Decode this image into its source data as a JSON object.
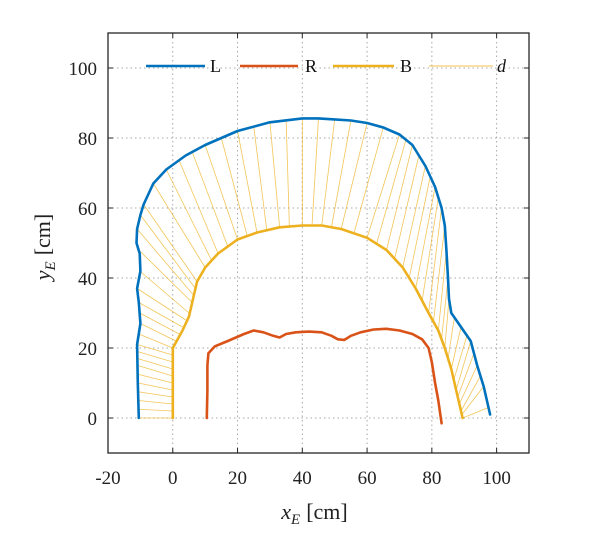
{
  "chart_data": {
    "type": "line",
    "xlabel": {
      "main": "x",
      "sub": "E",
      "unit": "[cm]"
    },
    "ylabel": {
      "main": "y",
      "sub": "E",
      "unit": "[cm]"
    },
    "xlim": [
      -20,
      110
    ],
    "ylim": [
      -10,
      110
    ],
    "xticks": [
      -20,
      0,
      20,
      40,
      60,
      80,
      100
    ],
    "yticks": [
      0,
      20,
      40,
      60,
      80,
      100
    ],
    "grid": true,
    "legend_position": "top",
    "colors": {
      "L": "#0072bd",
      "R": "#d95319",
      "B": "#edb120",
      "d": "#edb120"
    },
    "series": [
      {
        "name": "L",
        "points": [
          [
            -10.5,
            0
          ],
          [
            -10.8,
            10
          ],
          [
            -11,
            21
          ],
          [
            -10,
            27
          ],
          [
            -10.5,
            33
          ],
          [
            -11,
            37
          ],
          [
            -10,
            42
          ],
          [
            -10.2,
            47
          ],
          [
            -11.2,
            50
          ],
          [
            -11,
            54
          ],
          [
            -10,
            58
          ],
          [
            -9,
            61
          ],
          [
            -6,
            67
          ],
          [
            -2,
            71
          ],
          [
            4,
            75
          ],
          [
            10,
            78
          ],
          [
            20,
            82
          ],
          [
            30,
            84.5
          ],
          [
            40,
            85.6
          ],
          [
            45,
            85.6
          ],
          [
            50,
            85.3
          ],
          [
            55,
            85
          ],
          [
            60,
            84.3
          ],
          [
            65,
            83
          ],
          [
            70,
            81
          ],
          [
            74,
            78
          ],
          [
            78,
            72
          ],
          [
            81,
            66
          ],
          [
            83,
            60
          ],
          [
            84,
            55
          ],
          [
            84.5,
            48
          ],
          [
            85,
            40
          ],
          [
            85.3,
            34
          ],
          [
            86,
            30
          ],
          [
            89,
            26
          ],
          [
            92,
            22
          ],
          [
            94,
            15
          ],
          [
            96,
            9
          ],
          [
            97.5,
            3
          ],
          [
            98,
            1
          ]
        ]
      },
      {
        "name": "R",
        "points": [
          [
            10.5,
            0
          ],
          [
            10.7,
            8
          ],
          [
            10.7,
            15
          ],
          [
            11,
            18.5
          ],
          [
            13,
            20.5
          ],
          [
            17,
            22
          ],
          [
            22,
            24
          ],
          [
            25,
            25
          ],
          [
            28,
            24.5
          ],
          [
            31,
            23.5
          ],
          [
            33,
            23
          ],
          [
            35,
            24
          ],
          [
            38,
            24.5
          ],
          [
            42,
            24.7
          ],
          [
            46,
            24.5
          ],
          [
            49,
            23.5
          ],
          [
            51,
            22.5
          ],
          [
            53,
            22.3
          ],
          [
            55,
            23.5
          ],
          [
            58,
            24.5
          ],
          [
            62,
            25.3
          ],
          [
            66,
            25.5
          ],
          [
            70,
            25
          ],
          [
            74,
            24
          ],
          [
            77,
            22.5
          ],
          [
            79,
            20
          ],
          [
            80,
            16
          ],
          [
            81,
            10
          ],
          [
            82,
            5
          ],
          [
            83,
            -1.5
          ]
        ]
      },
      {
        "name": "B",
        "points": [
          [
            0,
            0
          ],
          [
            0,
            10
          ],
          [
            0,
            20
          ],
          [
            3,
            25
          ],
          [
            5,
            29
          ],
          [
            6.5,
            35
          ],
          [
            7.5,
            39
          ],
          [
            10,
            43
          ],
          [
            14,
            47
          ],
          [
            20,
            51
          ],
          [
            26,
            53
          ],
          [
            33,
            54.5
          ],
          [
            40,
            55
          ],
          [
            46,
            55
          ],
          [
            52,
            54
          ],
          [
            60,
            51.5
          ],
          [
            66,
            48
          ],
          [
            71,
            43
          ],
          [
            75,
            37
          ],
          [
            79,
            30
          ],
          [
            82,
            25
          ],
          [
            84,
            20
          ],
          [
            86,
            14
          ],
          [
            87.5,
            8
          ],
          [
            89,
            2
          ],
          [
            89.5,
            0
          ]
        ]
      }
    ],
    "rays": [
      [
        [
          0,
          0
        ],
        [
          -10.5,
          0
        ]
      ],
      [
        [
          0,
          2
        ],
        [
          -10.6,
          2.5
        ]
      ],
      [
        [
          0,
          4
        ],
        [
          -10.6,
          5
        ]
      ],
      [
        [
          0,
          6
        ],
        [
          -10.7,
          7.5
        ]
      ],
      [
        [
          0,
          8
        ],
        [
          -10.7,
          10
        ]
      ],
      [
        [
          0,
          10
        ],
        [
          -10.8,
          12.5
        ]
      ],
      [
        [
          0,
          12
        ],
        [
          -10.8,
          15
        ]
      ],
      [
        [
          0,
          14
        ],
        [
          -10.9,
          17
        ]
      ],
      [
        [
          0,
          16
        ],
        [
          -10.9,
          19
        ]
      ],
      [
        [
          0,
          18
        ],
        [
          -11,
          21
        ]
      ],
      [
        [
          0,
          20
        ],
        [
          -10.5,
          24
        ]
      ],
      [
        [
          1,
          22
        ],
        [
          -10,
          27
        ]
      ],
      [
        [
          2,
          24
        ],
        [
          -10.2,
          30
        ]
      ],
      [
        [
          3,
          26
        ],
        [
          -10.5,
          33
        ]
      ],
      [
        [
          4,
          28
        ],
        [
          -11,
          37
        ]
      ],
      [
        [
          5,
          30
        ],
        [
          -10.2,
          42
        ]
      ],
      [
        [
          6,
          33
        ],
        [
          -10.5,
          48
        ]
      ],
      [
        [
          6.5,
          35
        ],
        [
          -11,
          54
        ]
      ],
      [
        [
          7,
          37
        ],
        [
          -10,
          58
        ]
      ],
      [
        [
          7.5,
          39
        ],
        [
          -9,
          61
        ]
      ],
      [
        [
          10,
          43
        ],
        [
          -6,
          67
        ]
      ],
      [
        [
          12,
          45
        ],
        [
          -2,
          71
        ]
      ],
      [
        [
          14,
          47
        ],
        [
          2,
          73.5
        ]
      ],
      [
        [
          17,
          49
        ],
        [
          6,
          76
        ]
      ],
      [
        [
          20,
          51
        ],
        [
          10,
          78
        ]
      ],
      [
        [
          23,
          52
        ],
        [
          15,
          80
        ]
      ],
      [
        [
          26,
          53
        ],
        [
          20,
          82
        ]
      ],
      [
        [
          29,
          53.8
        ],
        [
          25,
          83.3
        ]
      ],
      [
        [
          33,
          54.5
        ],
        [
          30,
          84.5
        ]
      ],
      [
        [
          36,
          54.8
        ],
        [
          35,
          85.2
        ]
      ],
      [
        [
          40,
          55
        ],
        [
          40,
          85.6
        ]
      ],
      [
        [
          43,
          55
        ],
        [
          45,
          85.6
        ]
      ],
      [
        [
          46,
          55
        ],
        [
          50,
          85.3
        ]
      ],
      [
        [
          49,
          54.5
        ],
        [
          55,
          85
        ]
      ],
      [
        [
          52,
          54
        ],
        [
          60,
          84.3
        ]
      ],
      [
        [
          56,
          53
        ],
        [
          65,
          83
        ]
      ],
      [
        [
          60,
          51.5
        ],
        [
          70,
          81
        ]
      ],
      [
        [
          63,
          50
        ],
        [
          72,
          79.5
        ]
      ],
      [
        [
          66,
          48
        ],
        [
          74,
          78
        ]
      ],
      [
        [
          68.5,
          45.5
        ],
        [
          76,
          75
        ]
      ],
      [
        [
          71,
          43
        ],
        [
          78,
          72
        ]
      ],
      [
        [
          73,
          40
        ],
        [
          79.5,
          69
        ]
      ],
      [
        [
          75,
          37
        ],
        [
          81,
          66
        ]
      ],
      [
        [
          77,
          33.5
        ],
        [
          82,
          63
        ]
      ],
      [
        [
          79,
          30
        ],
        [
          83,
          60
        ]
      ],
      [
        [
          80.5,
          27.5
        ],
        [
          84,
          55
        ]
      ],
      [
        [
          82,
          25
        ],
        [
          84.5,
          48
        ]
      ],
      [
        [
          83,
          22.5
        ],
        [
          85,
          40
        ]
      ],
      [
        [
          84,
          20
        ],
        [
          85.3,
          34
        ]
      ],
      [
        [
          85,
          17
        ],
        [
          87,
          29
        ]
      ],
      [
        [
          86,
          14
        ],
        [
          89,
          26
        ]
      ],
      [
        [
          86.8,
          11
        ],
        [
          91,
          24
        ]
      ],
      [
        [
          87.5,
          8
        ],
        [
          92,
          22
        ]
      ],
      [
        [
          88,
          6
        ],
        [
          93,
          18.5
        ]
      ],
      [
        [
          88.5,
          4
        ],
        [
          94,
          15
        ]
      ],
      [
        [
          89,
          2
        ],
        [
          95,
          12
        ]
      ],
      [
        [
          89.3,
          1
        ],
        [
          96,
          9
        ]
      ],
      [
        [
          89.5,
          0
        ],
        [
          97.5,
          3
        ]
      ]
    ],
    "legend": [
      {
        "key": "L",
        "label": "L",
        "style": "solid"
      },
      {
        "key": "R",
        "label": "R",
        "style": "solid"
      },
      {
        "key": "B",
        "label": "B",
        "style": "solid"
      },
      {
        "key": "d",
        "label": "d",
        "style": "thin"
      }
    ]
  }
}
